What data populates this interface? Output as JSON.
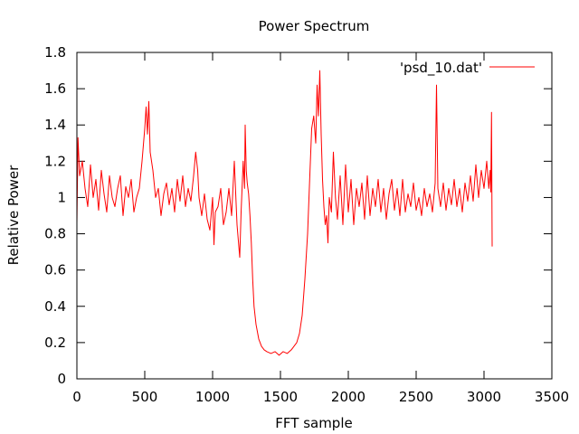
{
  "chart_data": {
    "type": "line",
    "title": "Power Spectrum",
    "xlabel": "FFT sample",
    "ylabel": "Relative Power",
    "xlim": [
      0,
      3500
    ],
    "ylim": [
      0,
      1.8
    ],
    "xticks": [
      0,
      500,
      1000,
      1500,
      2000,
      2500,
      3000,
      3500
    ],
    "yticks": [
      0,
      0.2,
      0.4,
      0.6,
      0.8,
      1,
      1.2,
      1.4,
      1.6,
      1.8
    ],
    "xtick_labels": [
      "0",
      "500",
      "1000",
      "1500",
      "2000",
      "2500",
      "3000",
      "3500"
    ],
    "ytick_labels": [
      "0",
      "0.2",
      "0.4",
      "0.6",
      "0.8",
      "1",
      "1.2",
      "1.4",
      "1.6",
      "1.8"
    ],
    "grid": false,
    "legend_position": "top-right",
    "series": [
      {
        "name": "'psd_10.dat'",
        "color": "#ff0000",
        "points": [
          [
            0,
            0.86
          ],
          [
            8,
            1.33
          ],
          [
            20,
            1.12
          ],
          [
            40,
            1.2
          ],
          [
            60,
            1.05
          ],
          [
            80,
            0.95
          ],
          [
            100,
            1.18
          ],
          [
            120,
            1.0
          ],
          [
            140,
            1.1
          ],
          [
            160,
            0.93
          ],
          [
            180,
            1.15
          ],
          [
            200,
            1.02
          ],
          [
            220,
            0.92
          ],
          [
            240,
            1.12
          ],
          [
            260,
            1.0
          ],
          [
            280,
            0.95
          ],
          [
            300,
            1.05
          ],
          [
            320,
            1.12
          ],
          [
            340,
            0.9
          ],
          [
            360,
            1.06
          ],
          [
            380,
            1.0
          ],
          [
            400,
            1.1
          ],
          [
            420,
            0.92
          ],
          [
            440,
            1.0
          ],
          [
            460,
            1.05
          ],
          [
            480,
            1.2
          ],
          [
            500,
            1.38
          ],
          [
            510,
            1.5
          ],
          [
            520,
            1.35
          ],
          [
            530,
            1.53
          ],
          [
            540,
            1.25
          ],
          [
            560,
            1.15
          ],
          [
            580,
            1.0
          ],
          [
            600,
            1.05
          ],
          [
            620,
            0.9
          ],
          [
            640,
            1.02
          ],
          [
            660,
            1.08
          ],
          [
            680,
            0.96
          ],
          [
            700,
            1.05
          ],
          [
            720,
            0.92
          ],
          [
            740,
            1.1
          ],
          [
            760,
            0.98
          ],
          [
            780,
            1.12
          ],
          [
            800,
            0.95
          ],
          [
            820,
            1.05
          ],
          [
            840,
            0.98
          ],
          [
            860,
            1.12
          ],
          [
            875,
            1.25
          ],
          [
            890,
            1.15
          ],
          [
            900,
            1.0
          ],
          [
            920,
            0.9
          ],
          [
            940,
            1.02
          ],
          [
            960,
            0.88
          ],
          [
            980,
            0.82
          ],
          [
            1000,
            1.0
          ],
          [
            1010,
            0.74
          ],
          [
            1020,
            0.92
          ],
          [
            1040,
            0.95
          ],
          [
            1060,
            1.05
          ],
          [
            1080,
            0.85
          ],
          [
            1100,
            0.92
          ],
          [
            1120,
            1.05
          ],
          [
            1140,
            0.9
          ],
          [
            1160,
            1.2
          ],
          [
            1180,
            0.85
          ],
          [
            1200,
            0.67
          ],
          [
            1210,
            0.92
          ],
          [
            1225,
            1.2
          ],
          [
            1235,
            1.05
          ],
          [
            1240,
            1.4
          ],
          [
            1248,
            1.15
          ],
          [
            1255,
            1.08
          ],
          [
            1265,
            1.02
          ],
          [
            1275,
            0.9
          ],
          [
            1285,
            0.75
          ],
          [
            1295,
            0.55
          ],
          [
            1305,
            0.4
          ],
          [
            1320,
            0.3
          ],
          [
            1340,
            0.22
          ],
          [
            1360,
            0.18
          ],
          [
            1380,
            0.16
          ],
          [
            1400,
            0.15
          ],
          [
            1430,
            0.14
          ],
          [
            1460,
            0.15
          ],
          [
            1490,
            0.13
          ],
          [
            1520,
            0.15
          ],
          [
            1550,
            0.14
          ],
          [
            1580,
            0.16
          ],
          [
            1600,
            0.18
          ],
          [
            1620,
            0.2
          ],
          [
            1640,
            0.25
          ],
          [
            1660,
            0.35
          ],
          [
            1680,
            0.55
          ],
          [
            1700,
            0.8
          ],
          [
            1715,
            1.1
          ],
          [
            1730,
            1.38
          ],
          [
            1745,
            1.45
          ],
          [
            1760,
            1.3
          ],
          [
            1770,
            1.62
          ],
          [
            1780,
            1.45
          ],
          [
            1790,
            1.7
          ],
          [
            1800,
            1.35
          ],
          [
            1810,
            1.1
          ],
          [
            1820,
            0.95
          ],
          [
            1830,
            0.85
          ],
          [
            1840,
            0.9
          ],
          [
            1850,
            0.75
          ],
          [
            1860,
            1.0
          ],
          [
            1875,
            0.92
          ],
          [
            1890,
            1.25
          ],
          [
            1905,
            1.0
          ],
          [
            1920,
            0.88
          ],
          [
            1940,
            1.12
          ],
          [
            1960,
            0.85
          ],
          [
            1980,
            1.18
          ],
          [
            2000,
            0.92
          ],
          [
            2020,
            1.1
          ],
          [
            2040,
            0.85
          ],
          [
            2060,
            1.05
          ],
          [
            2080,
            0.95
          ],
          [
            2100,
            1.08
          ],
          [
            2120,
            0.88
          ],
          [
            2140,
            1.12
          ],
          [
            2160,
            0.9
          ],
          [
            2180,
            1.05
          ],
          [
            2200,
            0.95
          ],
          [
            2220,
            1.1
          ],
          [
            2240,
            0.92
          ],
          [
            2260,
            1.05
          ],
          [
            2280,
            0.88
          ],
          [
            2300,
            1.02
          ],
          [
            2320,
            1.1
          ],
          [
            2340,
            0.93
          ],
          [
            2360,
            1.05
          ],
          [
            2380,
            0.9
          ],
          [
            2400,
            1.1
          ],
          [
            2420,
            0.92
          ],
          [
            2440,
            1.02
          ],
          [
            2460,
            0.95
          ],
          [
            2480,
            1.08
          ],
          [
            2500,
            0.93
          ],
          [
            2520,
            1.0
          ],
          [
            2540,
            0.9
          ],
          [
            2560,
            1.05
          ],
          [
            2580,
            0.95
          ],
          [
            2600,
            1.02
          ],
          [
            2620,
            0.92
          ],
          [
            2640,
            1.08
          ],
          [
            2650,
            1.62
          ],
          [
            2660,
            1.05
          ],
          [
            2680,
            0.95
          ],
          [
            2700,
            1.08
          ],
          [
            2720,
            0.93
          ],
          [
            2740,
            1.05
          ],
          [
            2760,
            0.96
          ],
          [
            2780,
            1.1
          ],
          [
            2800,
            0.95
          ],
          [
            2820,
            1.05
          ],
          [
            2840,
            0.92
          ],
          [
            2860,
            1.08
          ],
          [
            2880,
            0.98
          ],
          [
            2900,
            1.12
          ],
          [
            2920,
            0.98
          ],
          [
            2940,
            1.18
          ],
          [
            2960,
            1.0
          ],
          [
            2980,
            1.15
          ],
          [
            3000,
            1.05
          ],
          [
            3020,
            1.2
          ],
          [
            3035,
            1.05
          ],
          [
            3045,
            1.15
          ],
          [
            3050,
            1.03
          ],
          [
            3055,
            1.47
          ],
          [
            3060,
            0.73
          ]
        ]
      }
    ]
  }
}
